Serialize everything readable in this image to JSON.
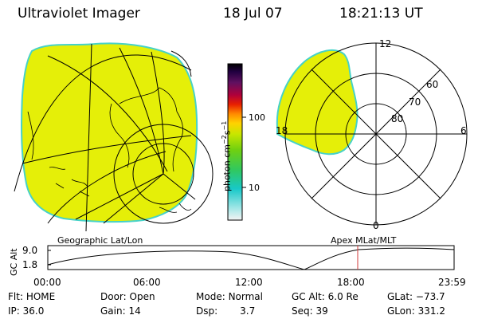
{
  "header": {
    "instrument": "Ultraviolet Imager",
    "date": "18 Jul 07",
    "time": "18:21:13 UT"
  },
  "colorbar": {
    "unit_main": "photon cm",
    "unit_sup1": "−2",
    "unit_s": "s",
    "unit_sup2": "−1",
    "ticks": [
      "100",
      "10"
    ]
  },
  "polar_plot": {
    "mlt_labels": {
      "top": "12",
      "left": "18",
      "right": "6",
      "bottom": "0"
    },
    "mlat_labels": [
      "60",
      "70",
      "80"
    ]
  },
  "captions": {
    "left": "Geographic Lat/Lon",
    "right": "Apex MLat/MLT"
  },
  "orbit_strip": {
    "ylabel": "GC Alt",
    "yticks": [
      "9.0",
      "1.8"
    ],
    "xticks": [
      "00:00",
      "06:00",
      "12:00",
      "18:00",
      "23:59"
    ]
  },
  "footer": {
    "flt_label": "Flt:",
    "flt_value": "HOME",
    "ip_label": "IP:",
    "ip_value": "36.0",
    "door_label": "Door:",
    "door_value": "Open",
    "gain_label": "Gain:",
    "gain_value": "14",
    "mode_label": "Mode:",
    "mode_value": "Normal",
    "dsp_label": "Dsp:",
    "dsp_value": "3.7",
    "gcalt_label": "GC Alt:",
    "gcalt_value": "6.0 Re",
    "seq_label": "Seq:",
    "seq_value": "39",
    "glat_label": "GLat:",
    "glat_value": "−73.7",
    "glon_label": "GLon:",
    "glon_value": "331.2"
  },
  "colors": {
    "emission_fill": "#e5ef08",
    "emission_edge": "#46d2c8",
    "current_time_marker": "#d03a3a"
  }
}
